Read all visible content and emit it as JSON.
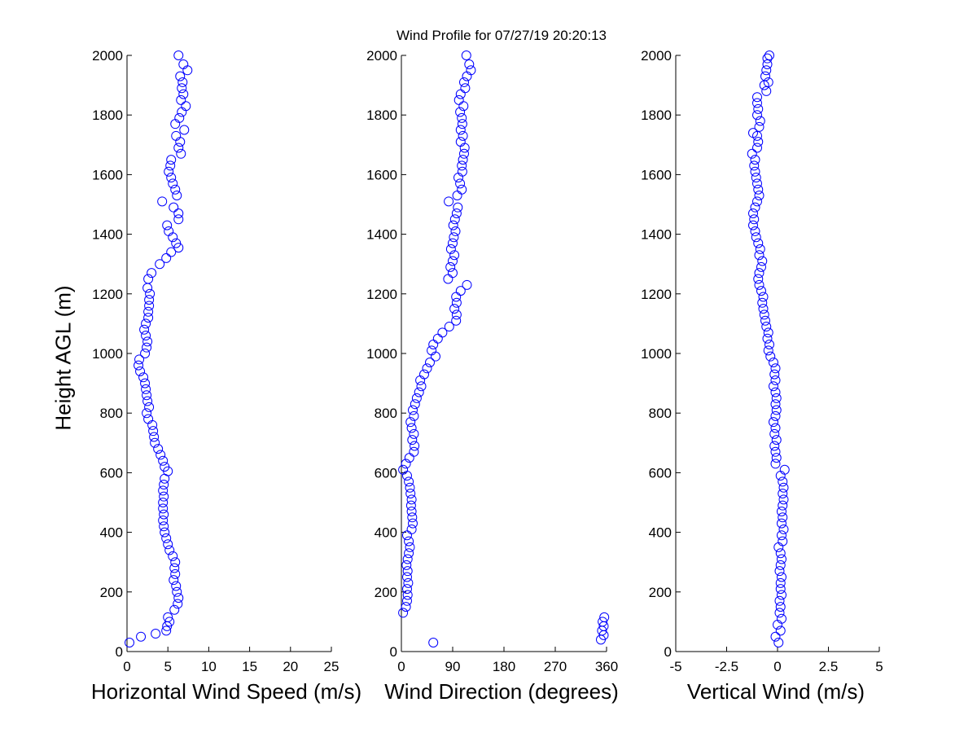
{
  "figure": {
    "title": "Wind Profile for  07/27/19 20:20:13",
    "ylabel": "Height AGL (m)"
  },
  "chart_data": [
    {
      "type": "scatter",
      "xlabel": "Horizontal Wind Speed (m/s)",
      "ylabel": "Height AGL (m)",
      "xlim": [
        0,
        25
      ],
      "ylim": [
        0,
        2000
      ],
      "xticks": [
        "0",
        "5",
        "10",
        "15",
        "20",
        "25"
      ],
      "yticks": [
        "0",
        "200",
        "400",
        "600",
        "800",
        "1000",
        "1200",
        "1400",
        "1600",
        "1800",
        "2000"
      ],
      "marker_color": "#0000ff",
      "points": [
        [
          0.3,
          30
        ],
        [
          1.7,
          50
        ],
        [
          3.5,
          60
        ],
        [
          4.8,
          70
        ],
        [
          4.9,
          85
        ],
        [
          5.2,
          100
        ],
        [
          5.0,
          115
        ],
        [
          5.8,
          140
        ],
        [
          6.2,
          160
        ],
        [
          6.3,
          180
        ],
        [
          6.1,
          200
        ],
        [
          6.0,
          220
        ],
        [
          5.7,
          240
        ],
        [
          5.9,
          260
        ],
        [
          5.8,
          280
        ],
        [
          5.9,
          300
        ],
        [
          5.6,
          320
        ],
        [
          5.2,
          340
        ],
        [
          5.0,
          360
        ],
        [
          4.8,
          380
        ],
        [
          4.6,
          400
        ],
        [
          4.5,
          420
        ],
        [
          4.4,
          440
        ],
        [
          4.5,
          460
        ],
        [
          4.4,
          480
        ],
        [
          4.4,
          500
        ],
        [
          4.5,
          520
        ],
        [
          4.4,
          540
        ],
        [
          4.5,
          560
        ],
        [
          4.6,
          580
        ],
        [
          5.0,
          605
        ],
        [
          4.6,
          620
        ],
        [
          4.4,
          640
        ],
        [
          4.1,
          660
        ],
        [
          3.8,
          680
        ],
        [
          3.4,
          700
        ],
        [
          3.3,
          720
        ],
        [
          3.2,
          740
        ],
        [
          3.1,
          760
        ],
        [
          2.6,
          780
        ],
        [
          2.4,
          800
        ],
        [
          2.7,
          820
        ],
        [
          2.5,
          840
        ],
        [
          2.4,
          860
        ],
        [
          2.3,
          880
        ],
        [
          2.2,
          900
        ],
        [
          2.0,
          920
        ],
        [
          1.6,
          940
        ],
        [
          1.4,
          960
        ],
        [
          1.5,
          980
        ],
        [
          2.2,
          1000
        ],
        [
          2.4,
          1020
        ],
        [
          2.5,
          1040
        ],
        [
          2.3,
          1060
        ],
        [
          2.1,
          1080
        ],
        [
          2.3,
          1100
        ],
        [
          2.6,
          1120
        ],
        [
          2.6,
          1140
        ],
        [
          2.7,
          1160
        ],
        [
          2.7,
          1180
        ],
        [
          2.8,
          1200
        ],
        [
          2.5,
          1220
        ],
        [
          2.6,
          1250
        ],
        [
          3.0,
          1270
        ],
        [
          4.0,
          1300
        ],
        [
          4.8,
          1320
        ],
        [
          5.4,
          1340
        ],
        [
          6.3,
          1355
        ],
        [
          6.0,
          1370
        ],
        [
          5.6,
          1390
        ],
        [
          5.1,
          1410
        ],
        [
          4.9,
          1430
        ],
        [
          6.3,
          1450
        ],
        [
          6.3,
          1470
        ],
        [
          5.7,
          1490
        ],
        [
          4.3,
          1510
        ],
        [
          6.1,
          1530
        ],
        [
          5.9,
          1550
        ],
        [
          5.6,
          1570
        ],
        [
          5.4,
          1590
        ],
        [
          5.1,
          1610
        ],
        [
          5.3,
          1630
        ],
        [
          5.4,
          1650
        ],
        [
          6.6,
          1670
        ],
        [
          6.3,
          1690
        ],
        [
          6.5,
          1710
        ],
        [
          6.0,
          1730
        ],
        [
          7.0,
          1750
        ],
        [
          5.9,
          1770
        ],
        [
          6.4,
          1790
        ],
        [
          6.7,
          1810
        ],
        [
          7.2,
          1830
        ],
        [
          6.6,
          1850
        ],
        [
          6.9,
          1870
        ],
        [
          6.7,
          1890
        ],
        [
          6.8,
          1910
        ],
        [
          6.5,
          1930
        ],
        [
          7.4,
          1950
        ],
        [
          6.9,
          1970
        ],
        [
          6.3,
          2000
        ]
      ]
    },
    {
      "type": "scatter",
      "xlabel": "Wind Direction (degrees)",
      "ylabel": "Height AGL (m)",
      "xlim": [
        0,
        360
      ],
      "ylim": [
        0,
        2000
      ],
      "xticks": [
        "0",
        "90",
        "180",
        "270",
        "360"
      ],
      "yticks": [
        "0",
        "200",
        "400",
        "600",
        "800",
        "1000",
        "1200",
        "1400",
        "1600",
        "1800",
        "2000"
      ],
      "marker_color": "#0000ff",
      "points": [
        [
          56,
          30
        ],
        [
          350,
          40
        ],
        [
          355,
          55
        ],
        [
          352,
          70
        ],
        [
          355,
          85
        ],
        [
          353,
          100
        ],
        [
          356,
          115
        ],
        [
          3,
          130
        ],
        [
          8,
          150
        ],
        [
          10,
          170
        ],
        [
          11,
          190
        ],
        [
          10,
          210
        ],
        [
          12,
          230
        ],
        [
          10,
          250
        ],
        [
          11,
          270
        ],
        [
          9,
          290
        ],
        [
          11,
          310
        ],
        [
          13,
          330
        ],
        [
          15,
          350
        ],
        [
          13,
          370
        ],
        [
          10,
          390
        ],
        [
          18,
          410
        ],
        [
          20,
          430
        ],
        [
          19,
          450
        ],
        [
          18,
          470
        ],
        [
          17,
          490
        ],
        [
          18,
          510
        ],
        [
          16,
          530
        ],
        [
          15,
          550
        ],
        [
          13,
          570
        ],
        [
          10,
          590
        ],
        [
          3,
          610
        ],
        [
          8,
          630
        ],
        [
          14,
          650
        ],
        [
          22,
          670
        ],
        [
          23,
          690
        ],
        [
          19,
          710
        ],
        [
          22,
          730
        ],
        [
          18,
          750
        ],
        [
          16,
          770
        ],
        [
          22,
          790
        ],
        [
          20,
          810
        ],
        [
          24,
          830
        ],
        [
          27,
          850
        ],
        [
          31,
          870
        ],
        [
          35,
          890
        ],
        [
          33,
          910
        ],
        [
          40,
          930
        ],
        [
          45,
          950
        ],
        [
          50,
          970
        ],
        [
          60,
          990
        ],
        [
          53,
          1010
        ],
        [
          56,
          1030
        ],
        [
          64,
          1050
        ],
        [
          72,
          1070
        ],
        [
          84,
          1090
        ],
        [
          96,
          1110
        ],
        [
          97,
          1130
        ],
        [
          93,
          1150
        ],
        [
          97,
          1170
        ],
        [
          96,
          1190
        ],
        [
          104,
          1210
        ],
        [
          115,
          1230
        ],
        [
          82,
          1250
        ],
        [
          90,
          1270
        ],
        [
          86,
          1290
        ],
        [
          90,
          1310
        ],
        [
          93,
          1330
        ],
        [
          87,
          1350
        ],
        [
          90,
          1370
        ],
        [
          92,
          1390
        ],
        [
          95,
          1410
        ],
        [
          91,
          1430
        ],
        [
          94,
          1450
        ],
        [
          97,
          1470
        ],
        [
          99,
          1490
        ],
        [
          83,
          1510
        ],
        [
          98,
          1530
        ],
        [
          106,
          1550
        ],
        [
          103,
          1570
        ],
        [
          100,
          1590
        ],
        [
          107,
          1610
        ],
        [
          106,
          1630
        ],
        [
          108,
          1650
        ],
        [
          110,
          1670
        ],
        [
          111,
          1690
        ],
        [
          104,
          1710
        ],
        [
          108,
          1730
        ],
        [
          104,
          1750
        ],
        [
          107,
          1770
        ],
        [
          106,
          1790
        ],
        [
          103,
          1810
        ],
        [
          109,
          1830
        ],
        [
          101,
          1850
        ],
        [
          104,
          1870
        ],
        [
          112,
          1890
        ],
        [
          110,
          1910
        ],
        [
          115,
          1930
        ],
        [
          122,
          1950
        ],
        [
          119,
          1970
        ],
        [
          114,
          2000
        ]
      ]
    },
    {
      "type": "scatter",
      "xlabel": "Vertical Wind (m/s)",
      "ylabel": "Height AGL (m)",
      "xlim": [
        -5,
        5
      ],
      "ylim": [
        0,
        2000
      ],
      "xticks": [
        "-5",
        "-2.5",
        "0",
        "2.5",
        "5"
      ],
      "yticks": [
        "0",
        "200",
        "400",
        "600",
        "800",
        "1000",
        "1200",
        "1400",
        "1600",
        "1800",
        "2000"
      ],
      "marker_color": "#0000ff",
      "points": [
        [
          0.05,
          30
        ],
        [
          -0.1,
          50
        ],
        [
          0.15,
          70
        ],
        [
          0.0,
          90
        ],
        [
          0.2,
          110
        ],
        [
          0.1,
          130
        ],
        [
          0.15,
          150
        ],
        [
          0.1,
          170
        ],
        [
          0.2,
          190
        ],
        [
          0.15,
          210
        ],
        [
          0.15,
          230
        ],
        [
          0.2,
          250
        ],
        [
          0.1,
          270
        ],
        [
          0.15,
          290
        ],
        [
          0.2,
          310
        ],
        [
          0.15,
          330
        ],
        [
          0.05,
          350
        ],
        [
          0.25,
          370
        ],
        [
          0.2,
          390
        ],
        [
          0.3,
          410
        ],
        [
          0.2,
          430
        ],
        [
          0.25,
          450
        ],
        [
          0.2,
          470
        ],
        [
          0.25,
          490
        ],
        [
          0.3,
          510
        ],
        [
          0.25,
          530
        ],
        [
          0.3,
          550
        ],
        [
          0.25,
          570
        ],
        [
          0.15,
          590
        ],
        [
          0.35,
          610
        ],
        [
          -0.1,
          630
        ],
        [
          -0.05,
          650
        ],
        [
          -0.1,
          670
        ],
        [
          -0.15,
          690
        ],
        [
          -0.05,
          710
        ],
        [
          -0.15,
          730
        ],
        [
          -0.1,
          750
        ],
        [
          -0.2,
          770
        ],
        [
          -0.1,
          790
        ],
        [
          -0.05,
          810
        ],
        [
          -0.1,
          830
        ],
        [
          -0.05,
          850
        ],
        [
          -0.1,
          870
        ],
        [
          -0.2,
          890
        ],
        [
          -0.1,
          910
        ],
        [
          -0.15,
          930
        ],
        [
          -0.1,
          950
        ],
        [
          -0.2,
          970
        ],
        [
          -0.35,
          990
        ],
        [
          -0.45,
          1010
        ],
        [
          -0.4,
          1030
        ],
        [
          -0.5,
          1050
        ],
        [
          -0.45,
          1070
        ],
        [
          -0.55,
          1090
        ],
        [
          -0.6,
          1110
        ],
        [
          -0.65,
          1130
        ],
        [
          -0.7,
          1150
        ],
        [
          -0.75,
          1170
        ],
        [
          -0.7,
          1190
        ],
        [
          -0.8,
          1210
        ],
        [
          -0.9,
          1230
        ],
        [
          -0.95,
          1250
        ],
        [
          -0.9,
          1270
        ],
        [
          -0.8,
          1290
        ],
        [
          -0.75,
          1310
        ],
        [
          -0.9,
          1330
        ],
        [
          -0.85,
          1350
        ],
        [
          -0.95,
          1370
        ],
        [
          -1.05,
          1390
        ],
        [
          -1.1,
          1410
        ],
        [
          -1.2,
          1430
        ],
        [
          -1.15,
          1450
        ],
        [
          -1.2,
          1470
        ],
        [
          -1.1,
          1490
        ],
        [
          -1.0,
          1510
        ],
        [
          -0.9,
          1530
        ],
        [
          -0.95,
          1550
        ],
        [
          -1.0,
          1570
        ],
        [
          -1.05,
          1590
        ],
        [
          -1.1,
          1610
        ],
        [
          -1.15,
          1630
        ],
        [
          -1.1,
          1650
        ],
        [
          -1.25,
          1670
        ],
        [
          -1.0,
          1690
        ],
        [
          -0.95,
          1710
        ],
        [
          -1.0,
          1730
        ],
        [
          -1.2,
          1740
        ],
        [
          -0.9,
          1760
        ],
        [
          -0.85,
          1780
        ],
        [
          -1.0,
          1800
        ],
        [
          -0.95,
          1820
        ],
        [
          -1.0,
          1840
        ],
        [
          -1.0,
          1860
        ],
        [
          -0.55,
          1880
        ],
        [
          -0.65,
          1900
        ],
        [
          -0.45,
          1910
        ],
        [
          -0.6,
          1930
        ],
        [
          -0.55,
          1950
        ],
        [
          -0.5,
          1970
        ],
        [
          -0.5,
          1990
        ],
        [
          -0.4,
          2000
        ]
      ]
    }
  ]
}
